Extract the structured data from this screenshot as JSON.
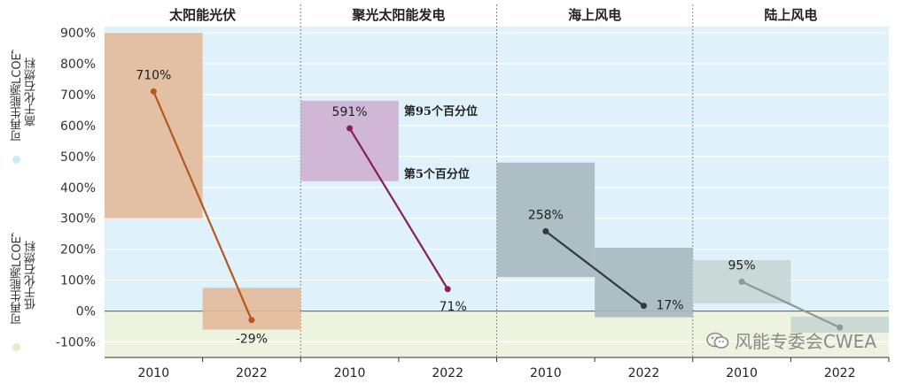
{
  "chart_data": {
    "type": "range-bar-dot",
    "ylim": [
      -150,
      920
    ],
    "yticks": [
      "900%",
      "800%",
      "700%",
      "600%",
      "500%",
      "400%",
      "300%",
      "200%",
      "100%",
      "0%",
      "-100%"
    ],
    "ytick_values": [
      900,
      800,
      700,
      600,
      500,
      400,
      300,
      200,
      100,
      0,
      -100
    ],
    "panels": [
      {
        "title": "太阳能光伏",
        "color": "#b5581f",
        "box_color": "#e3b99a",
        "points": [
          {
            "year": "2010",
            "value": 710,
            "label": "710%",
            "p5": 300,
            "p95": 900
          },
          {
            "year": "2022",
            "value": -29,
            "label": "-29%",
            "p5": -60,
            "p95": 75
          }
        ]
      },
      {
        "title": "聚光太阳能发电",
        "color": "#8a1f5a",
        "box_color": "#cdb0d0",
        "points": [
          {
            "year": "2010",
            "value": 591,
            "label": "591%",
            "p5": 420,
            "p95": 680
          },
          {
            "year": "2022",
            "value": 71,
            "label": "71%"
          }
        ]
      },
      {
        "title": "海上风电",
        "color": "#2f3a3a",
        "box_color": "#a9b8bf",
        "points": [
          {
            "year": "2010",
            "value": 258,
            "label": "258%",
            "p5": 110,
            "p95": 480
          },
          {
            "year": "2022",
            "value": 17,
            "label": "17%",
            "p5": -20,
            "p95": 205
          }
        ]
      },
      {
        "title": "陆上风电",
        "color": "#8a9a94",
        "box_color": "#c6d6d4",
        "points": [
          {
            "year": "2010",
            "value": 95,
            "label": "95%",
            "p5": 25,
            "p95": 165
          },
          {
            "year": "2022",
            "value": -53,
            "label": "",
            "p5": -70,
            "p95": -18
          }
        ]
      }
    ],
    "annotations": {
      "p95": "第95个百分位",
      "p5": "第5个百分位"
    },
    "regions": {
      "above": "可再生能源LCOE，\n高于化石燃料",
      "below": "可再生能源LCOE，\n低于化石燃料"
    },
    "colors": {
      "above_bg": "#dff1fb",
      "below_bg": "#eef3df",
      "above_dot": "#cde9f7",
      "below_dot": "#e2edd0"
    },
    "grid": true
  },
  "watermark": "风能专委会CWEA"
}
